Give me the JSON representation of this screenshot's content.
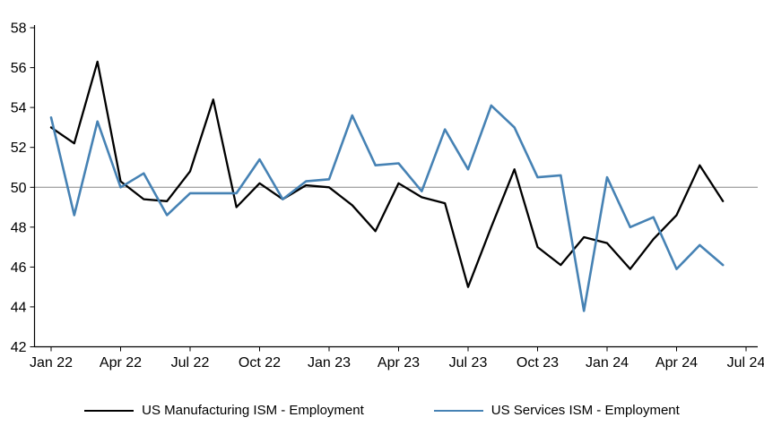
{
  "chart_data": {
    "type": "line",
    "title": "",
    "xlabel": "",
    "ylabel": "",
    "ylim": [
      42,
      58
    ],
    "y_ticks": [
      42,
      44,
      46,
      48,
      50,
      52,
      54,
      56,
      58
    ],
    "grid": false,
    "legend_position": "bottom",
    "reference_line": {
      "value": 50,
      "color": "#a6a6a6"
    },
    "x_tick_labels": [
      "Jan 22",
      "Apr 22",
      "Jul 22",
      "Oct 22",
      "Jan 23",
      "Apr 23",
      "Jul 23",
      "Oct 23",
      "Jan 24",
      "Apr 24",
      "Jul 24"
    ],
    "x": [
      "Jan 22",
      "Feb 22",
      "Mar 22",
      "Apr 22",
      "May 22",
      "Jun 22",
      "Jul 22",
      "Aug 22",
      "Sep 22",
      "Oct 22",
      "Nov 22",
      "Dec 22",
      "Jan 23",
      "Feb 23",
      "Mar 23",
      "Apr 23",
      "May 23",
      "Jun 23",
      "Jul 23",
      "Aug 23",
      "Sep 23",
      "Oct 23",
      "Nov 23",
      "Dec 23",
      "Jan 24",
      "Feb 24",
      "Mar 24",
      "Apr 24",
      "May 24",
      "Jun 24"
    ],
    "series": [
      {
        "key": "manufacturing",
        "name": "US Manufacturing ISM - Employment",
        "color": "#000000",
        "values": [
          53.0,
          52.2,
          56.3,
          50.3,
          49.4,
          49.3,
          50.8,
          54.4,
          49.0,
          50.2,
          49.4,
          50.1,
          50.0,
          49.1,
          47.8,
          50.2,
          49.5,
          49.2,
          45.0,
          48.0,
          50.9,
          47.0,
          46.1,
          47.5,
          47.2,
          45.9,
          47.4,
          48.6,
          51.1,
          49.3
        ]
      },
      {
        "key": "services",
        "name": "US Services ISM - Employment",
        "color": "#4682B4",
        "values": [
          53.5,
          48.6,
          53.3,
          50.0,
          50.7,
          48.6,
          49.7,
          49.7,
          49.7,
          51.4,
          49.4,
          50.3,
          50.4,
          53.6,
          51.1,
          51.2,
          49.8,
          52.9,
          50.9,
          54.1,
          53.0,
          50.5,
          50.6,
          43.8,
          50.5,
          48.0,
          48.5,
          45.9,
          47.1,
          46.1
        ]
      }
    ]
  }
}
